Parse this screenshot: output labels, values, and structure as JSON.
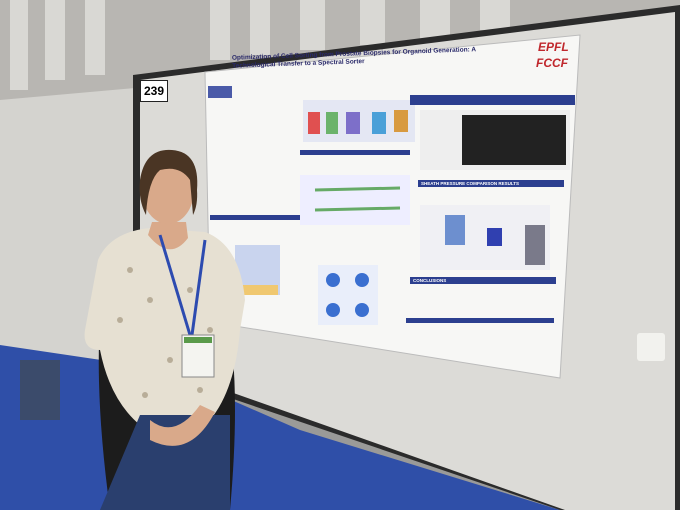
{
  "board_number": "239",
  "poster": {
    "title": "Optimization of Cell Sorting from Prostate Biopsies for Organoid Generation: A Technological Transfer to a Spectral Sorter",
    "logos": [
      "EPFL",
      "FCCF"
    ],
    "sections": [
      "SHEATH PRESSURE COMPARISON RESULTS",
      "CONCLUSIONS"
    ]
  }
}
